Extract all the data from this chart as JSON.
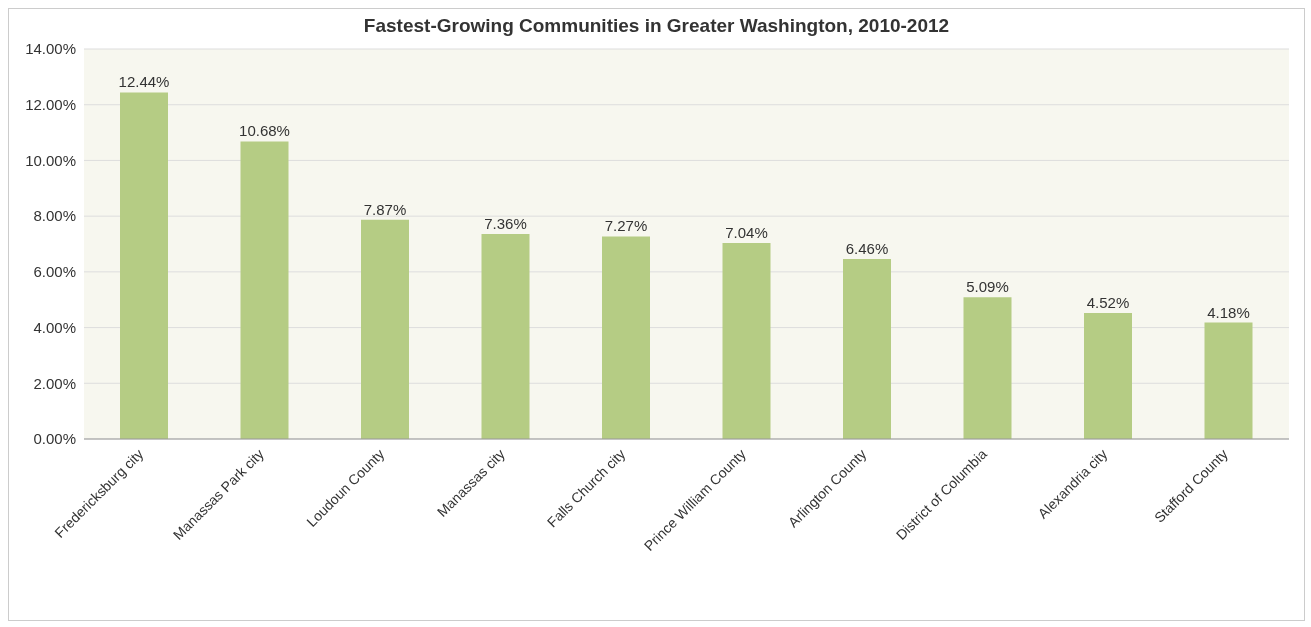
{
  "chart_data": {
    "type": "bar",
    "title": "Fastest-Growing Communities in Greater Washington, 2010-2012",
    "categories": [
      "Fredericksburg city",
      "Manassas Park city",
      "Loudoun County",
      "Manassas city",
      "Falls Church city",
      "Prince William County",
      "Arlington County",
      "District of Columbia",
      "Alexandria city",
      "Stafford County"
    ],
    "values": [
      12.44,
      10.68,
      7.87,
      7.36,
      7.27,
      7.04,
      6.46,
      5.09,
      4.52,
      4.18
    ],
    "value_labels": [
      "12.44%",
      "10.68%",
      "7.87%",
      "7.36%",
      "7.27%",
      "7.04%",
      "6.46%",
      "5.09%",
      "4.52%",
      "4.18%"
    ],
    "color": "#b5cc84",
    "ylim": [
      0,
      14
    ],
    "yticks": [
      {
        "value": 0,
        "label": "0.00%"
      },
      {
        "value": 2,
        "label": "2.00%"
      },
      {
        "value": 4,
        "label": "4.00%"
      },
      {
        "value": 6,
        "label": "6.00%"
      },
      {
        "value": 8,
        "label": "8.00%"
      },
      {
        "value": 10,
        "label": "10.00%"
      },
      {
        "value": 12,
        "label": "12.00%"
      },
      {
        "value": 14,
        "label": "14.00%"
      }
    ],
    "grid": "y",
    "legend": false
  }
}
